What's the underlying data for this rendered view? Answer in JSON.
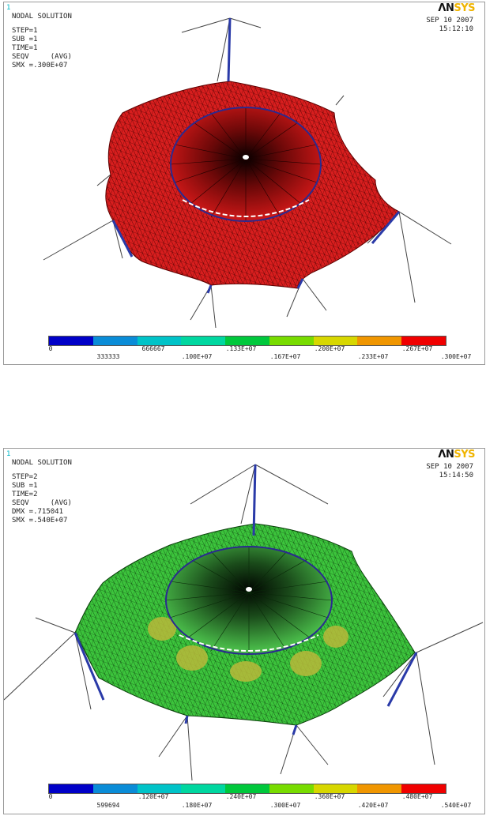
{
  "colors": {
    "contour": [
      "#0000c8",
      "#0a8cd7",
      "#00c3c8",
      "#00d7a0",
      "#00c83c",
      "#78dc00",
      "#d7d700",
      "#f09600",
      "#f00000"
    ]
  },
  "panels": [
    {
      "window_number": "1",
      "title": "NODAL SOLUTION",
      "step": "STEP=1",
      "sub": "SUB =1",
      "time": "TIME=1",
      "seqv": "SEQV     (AVG)",
      "dmx": "",
      "smx": "SMX =.300E+07",
      "logo_an": "ΛN",
      "logo_sys": "SYS",
      "date": "SEP 10 2007",
      "clock": "15:12:10",
      "mesh_color": "#e02020",
      "legend_top": [
        "0",
        "666667",
        ".133E+07",
        ".200E+07",
        ".267E+07"
      ],
      "legend_bottom": [
        "333333",
        ".100E+07",
        ".167E+07",
        ".233E+07",
        ".300E+07"
      ]
    },
    {
      "window_number": "1",
      "title": "NODAL SOLUTION",
      "step": "STEP=2",
      "sub": "SUB =1",
      "time": "TIME=2",
      "seqv": "SEQV     (AVG)",
      "dmx": "DMX =.715041",
      "smx": "SMX =.540E+07",
      "logo_an": "ΛN",
      "logo_sys": "SYS",
      "date": "SEP 10 2007",
      "clock": "15:14:50",
      "mesh_color": "#3cc83c",
      "legend_top": [
        "0",
        ".120E+07",
        ".240E+07",
        ".360E+07",
        ".480E+07"
      ],
      "legend_bottom": [
        "599694",
        ".180E+07",
        ".300E+07",
        ".420E+07",
        ".540E+07"
      ]
    }
  ]
}
